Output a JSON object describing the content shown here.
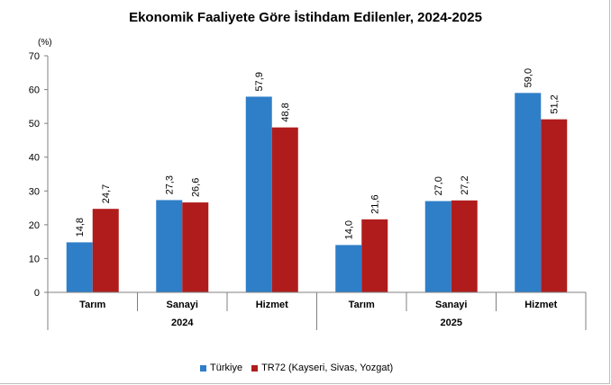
{
  "chart_data": {
    "type": "bar",
    "title": "Ekonomik Faaliyete Göre İstihdam Edilenler, 2024-2025",
    "ylabel": "(%)",
    "ylim": [
      0,
      70
    ],
    "yticks": [
      "0",
      "10",
      "20",
      "30",
      "40",
      "50",
      "60",
      "70"
    ],
    "categories": [
      "Tarım",
      "Sanayi",
      "Hizmet",
      "Tarım",
      "Sanayi",
      "Hizmet"
    ],
    "groups": [
      "2024",
      "2025"
    ],
    "series": [
      {
        "name": "Türkiye",
        "color": "#2e7fc8",
        "values": [
          14.8,
          27.3,
          57.9,
          14.0,
          27.0,
          59.0
        ],
        "labels": [
          "14,8",
          "27,3",
          "57,9",
          "14,0",
          "27,0",
          "59,0"
        ]
      },
      {
        "name": "TR72 (Kayseri, Sivas, Yozgat)",
        "color": "#b01c1c",
        "values": [
          24.7,
          26.6,
          48.8,
          21.6,
          27.2,
          51.2
        ],
        "labels": [
          "24,7",
          "26,6",
          "48,8",
          "21,6",
          "27,2",
          "51,2"
        ]
      }
    ],
    "grid": false,
    "legend": "bottom"
  }
}
